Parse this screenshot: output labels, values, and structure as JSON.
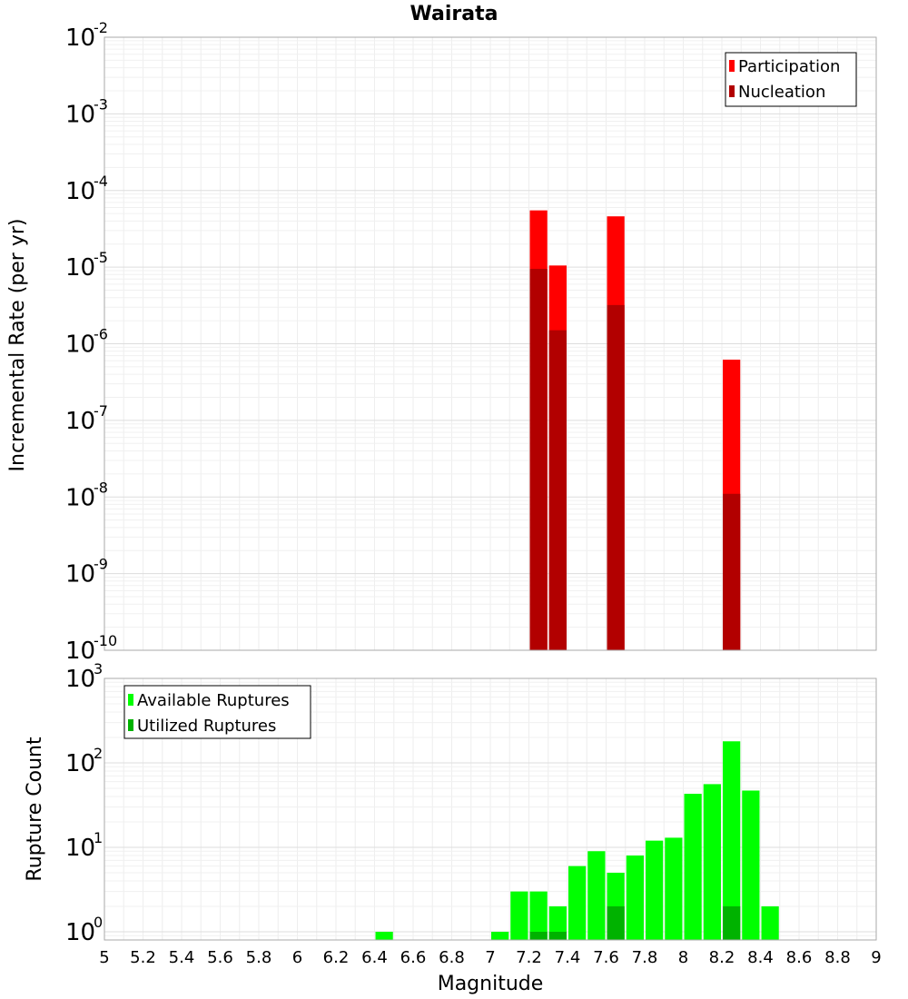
{
  "chart_data": [
    {
      "type": "bar",
      "title": "Wairata",
      "xlabel": "",
      "ylabel": "Incremental Rate (per yr)",
      "yscale": "log",
      "ylim": [
        1e-10,
        0.01
      ],
      "xlim": [
        5,
        9
      ],
      "grid": true,
      "legend_position": "top-right",
      "series": [
        {
          "name": "Participation",
          "color": "#ff0000",
          "points": [
            {
              "x": 7.25,
              "y": 5.5e-05
            },
            {
              "x": 7.35,
              "y": 1.05e-05
            },
            {
              "x": 7.65,
              "y": 4.6e-05
            },
            {
              "x": 8.25,
              "y": 6.2e-07
            }
          ]
        },
        {
          "name": "Nucleation",
          "color": "#b20000",
          "points": [
            {
              "x": 7.25,
              "y": 9.5e-06
            },
            {
              "x": 7.35,
              "y": 1.5e-06
            },
            {
              "x": 7.65,
              "y": 3.2e-06
            },
            {
              "x": 8.25,
              "y": 1.1e-08
            }
          ]
        }
      ],
      "y_ticks": [
        {
          "exp": "-10",
          "value": 1e-10
        },
        {
          "exp": "-9",
          "value": 1e-09
        },
        {
          "exp": "-8",
          "value": 1e-08
        },
        {
          "exp": "-7",
          "value": 1e-07
        },
        {
          "exp": "-6",
          "value": 1e-06
        },
        {
          "exp": "-5",
          "value": 1e-05
        },
        {
          "exp": "-4",
          "value": 0.0001
        },
        {
          "exp": "-3",
          "value": 0.001
        },
        {
          "exp": "-2",
          "value": 0.01
        }
      ]
    },
    {
      "type": "bar",
      "title": "",
      "xlabel": "Magnitude",
      "ylabel": "Rupture Count",
      "yscale": "log",
      "ylim": [
        0.8,
        1000
      ],
      "xlim": [
        5,
        9
      ],
      "grid": true,
      "legend_position": "top-left",
      "series": [
        {
          "name": "Available Ruptures",
          "color": "#00ff00",
          "points": [
            {
              "x": 6.45,
              "y": 1
            },
            {
              "x": 7.05,
              "y": 1
            },
            {
              "x": 7.15,
              "y": 3
            },
            {
              "x": 7.25,
              "y": 3
            },
            {
              "x": 7.35,
              "y": 2
            },
            {
              "x": 7.45,
              "y": 6
            },
            {
              "x": 7.55,
              "y": 9
            },
            {
              "x": 7.65,
              "y": 5
            },
            {
              "x": 7.75,
              "y": 8
            },
            {
              "x": 7.85,
              "y": 12
            },
            {
              "x": 7.95,
              "y": 13
            },
            {
              "x": 8.05,
              "y": 43
            },
            {
              "x": 8.15,
              "y": 56
            },
            {
              "x": 8.25,
              "y": 180
            },
            {
              "x": 8.35,
              "y": 47
            },
            {
              "x": 8.45,
              "y": 2
            }
          ]
        },
        {
          "name": "Utilized Ruptures",
          "color": "#00b200",
          "points": [
            {
              "x": 7.25,
              "y": 1
            },
            {
              "x": 7.35,
              "y": 1
            },
            {
              "x": 7.65,
              "y": 2
            },
            {
              "x": 8.25,
              "y": 2
            }
          ]
        }
      ],
      "y_ticks": [
        {
          "exp": "0",
          "value": 1
        },
        {
          "exp": "1",
          "value": 10
        },
        {
          "exp": "2",
          "value": 100
        },
        {
          "exp": "3",
          "value": 1000
        }
      ]
    }
  ],
  "x_ticks": [
    "5",
    "5.2",
    "5.4",
    "5.6",
    "5.8",
    "6",
    "6.2",
    "6.4",
    "6.6",
    "6.8",
    "7",
    "7.2",
    "7.4",
    "7.6",
    "7.8",
    "8",
    "8.2",
    "8.4",
    "8.6",
    "8.8",
    "9"
  ],
  "tick_base": "10",
  "bin_width": 0.1
}
